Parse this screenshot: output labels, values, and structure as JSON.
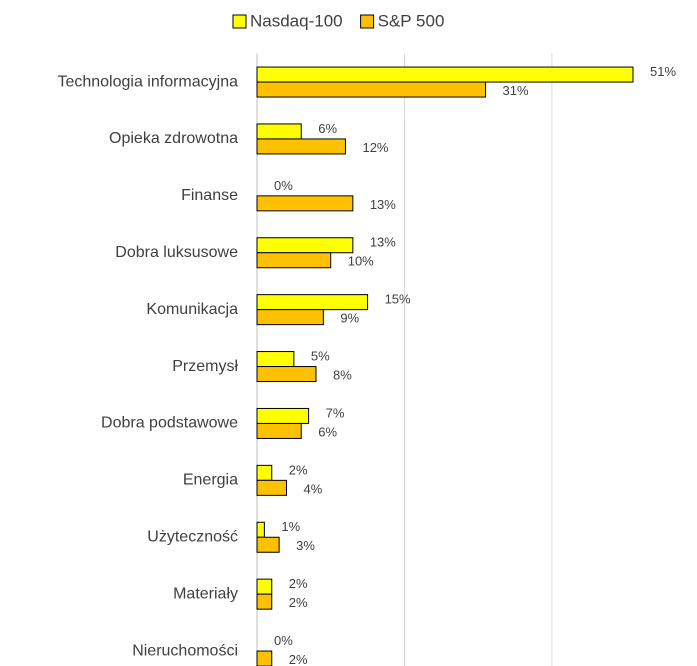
{
  "chart_data": {
    "type": "hbar",
    "categories": [
      "Technologia informacyjna",
      "Opieka zdrowotna",
      "Finanse",
      "Dobra luksusowe",
      "Komunikacja",
      "Przemysł",
      "Dobra podstawowe",
      "Energia",
      "Użyteczność",
      "Materiały",
      "Nieruchomości"
    ],
    "series": [
      {
        "name": "Nasdaq-100",
        "color": "#ffff00",
        "values": [
          51,
          6,
          0,
          13,
          15,
          5,
          7,
          2,
          1,
          2,
          0
        ],
        "value_labels": [
          "51%",
          "6%",
          "0%",
          "13%",
          "15%",
          "5%",
          "7%",
          "2%",
          "1%",
          "2%",
          "0%"
        ]
      },
      {
        "name": "S&P 500",
        "color": "#ffc000",
        "values": [
          31,
          12,
          13,
          10,
          9,
          8,
          6,
          4,
          3,
          2,
          2
        ],
        "value_labels": [
          "31%",
          "12%",
          "13%",
          "10%",
          "9%",
          "8%",
          "6%",
          "4%",
          "3%",
          "2%",
          "2%"
        ]
      }
    ],
    "xlim": [
      0,
      60
    ],
    "xticks": [
      0,
      20,
      40,
      60
    ],
    "grid": true,
    "xtick_labels": false,
    "legend": "top"
  }
}
